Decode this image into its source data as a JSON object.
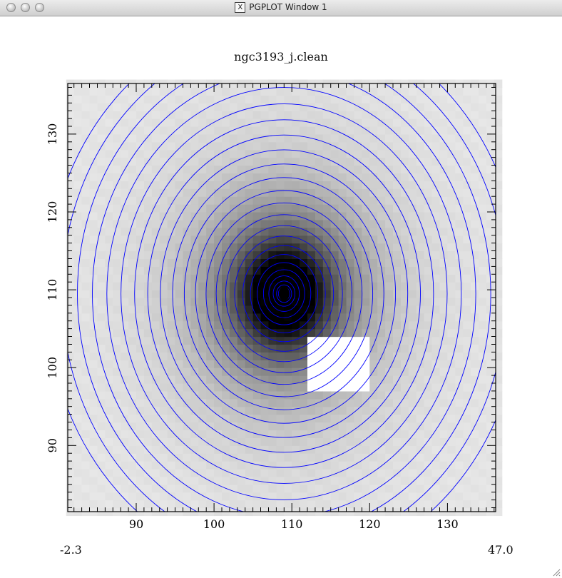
{
  "window": {
    "title": "PGPLOT Window 1",
    "x_icon": "X"
  },
  "chart_data": {
    "type": "heatmap",
    "title": "ngc3193_j.clean",
    "x_ticks": [
      "90",
      "100",
      "110",
      "120",
      "130"
    ],
    "y_ticks": [
      "90",
      "100",
      "110",
      "120",
      "130"
    ],
    "xlim": [
      81.2,
      136.2
    ],
    "ylim": [
      81.5,
      136.5
    ],
    "center": [
      109.0,
      109.5
    ],
    "masked_region": {
      "x_range": [
        112.5,
        120.5
      ],
      "y_range": [
        97.5,
        104.5
      ]
    },
    "grayscale_range": [
      "-2.3",
      "47.0"
    ],
    "contour_count": 24,
    "colors": {
      "contour": "#0000ff",
      "image_low": "#e6e6e6",
      "image_high": "#000000",
      "mask": "#ffffff"
    }
  }
}
